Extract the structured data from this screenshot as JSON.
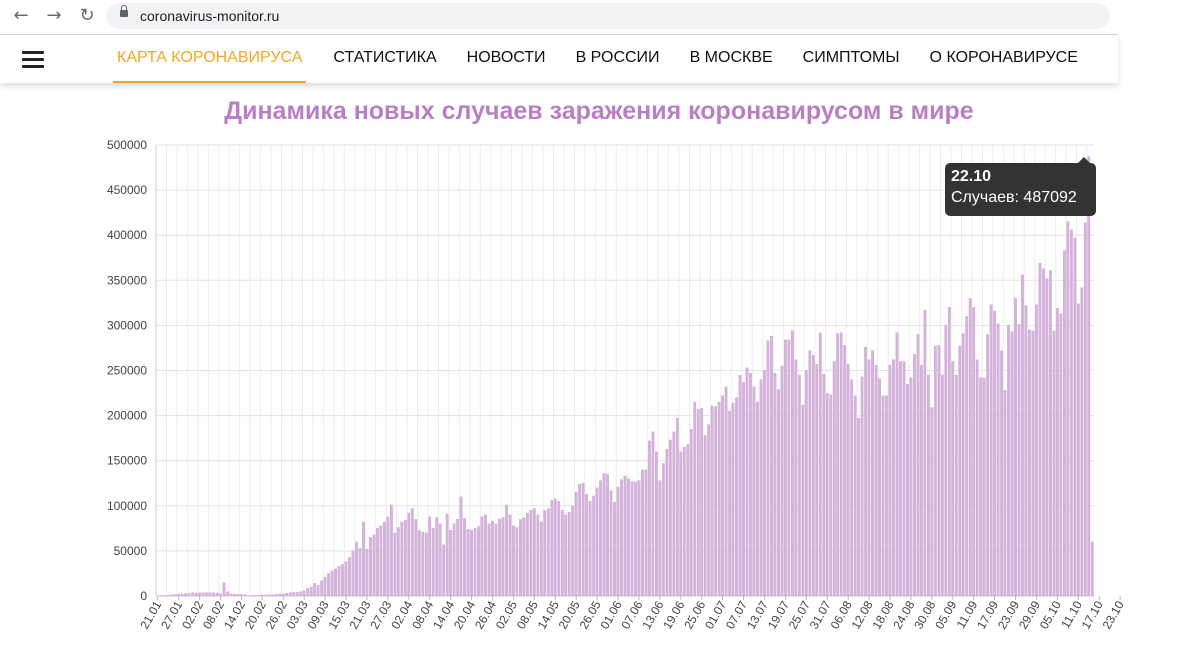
{
  "browser": {
    "back_icon": "arrow-left-icon",
    "forward_icon": "arrow-right-icon",
    "reload_icon": "reload-icon",
    "lock_icon": "lock-icon",
    "url": "coronavirus-monitor.ru"
  },
  "nav": {
    "menu_icon": "hamburger-menu-icon",
    "items": [
      {
        "label": "КАРТА КОРОНАВИРУСА",
        "active": true
      },
      {
        "label": "СТАТИСТИКА"
      },
      {
        "label": "НОВОСТИ"
      },
      {
        "label": "В РОССИИ"
      },
      {
        "label": "В МОСКВЕ"
      },
      {
        "label": "СИМПТОМЫ"
      },
      {
        "label": "О КОРОНАВИРУСЕ"
      }
    ],
    "accent_color": "#f5a623"
  },
  "chart_title": "Динамика новых случаев заражения коронавирусом в мире",
  "tooltip": {
    "date": "22.10",
    "label": "Случаев: 487092"
  },
  "chart_data": {
    "type": "bar",
    "title": "Динамика новых случаев заражения коронавирусом в мире",
    "bar_color": "#d6b3dc",
    "bar_edge_color": "#c79fce",
    "grid": true,
    "ylim": [
      0,
      500000
    ],
    "y_ticks": [
      "0",
      "50000",
      "100000",
      "150000",
      "200000",
      "250000",
      "300000",
      "350000",
      "400000",
      "450000",
      "500000"
    ],
    "x_tick_labels": [
      "21.01",
      "27.01",
      "02.02",
      "08.02",
      "14.02",
      "20.02",
      "26.02",
      "03.03",
      "09.03",
      "15.03",
      "21.03",
      "27.03",
      "02.04",
      "08.04",
      "14.04",
      "20.04",
      "26.04",
      "02.05",
      "08.05",
      "14.05",
      "20.05",
      "26.05",
      "01.06",
      "07.06",
      "13.06",
      "19.06",
      "25.06",
      "01.07",
      "07.07",
      "13.07",
      "19.07",
      "25.07",
      "31.07",
      "06.08",
      "12.08",
      "18.08",
      "24.08",
      "30.08",
      "05.09",
      "11.09",
      "17.09",
      "23.09",
      "29.09",
      "05.10",
      "11.10",
      "17.10",
      "23.10"
    ],
    "x_tick_every": 6,
    "start_date": "21.01",
    "values": [
      500,
      600,
      700,
      900,
      1200,
      1700,
      2100,
      2600,
      2800,
      3000,
      3600,
      3300,
      3500,
      3600,
      3700,
      3900,
      3600,
      3400,
      2500,
      15000,
      4800,
      2500,
      2000,
      1900,
      1800,
      1700,
      500,
      600,
      800,
      900,
      1100,
      1200,
      1300,
      1500,
      1800,
      2300,
      2500,
      3000,
      3500,
      4000,
      4200,
      4800,
      6000,
      8500,
      10000,
      14000,
      12000,
      17000,
      21000,
      25000,
      28000,
      30000,
      33000,
      35000,
      38000,
      43000,
      50000,
      60000,
      53000,
      82000,
      52000,
      65000,
      68000,
      75000,
      78000,
      82000,
      88000,
      101000,
      70000,
      76000,
      82000,
      84000,
      92000,
      97000,
      85000,
      73000,
      71000,
      70000,
      88000,
      75000,
      87000,
      80000,
      57000,
      91000,
      73000,
      80000,
      85000,
      110000,
      86000,
      74000,
      73000,
      75000,
      77000,
      88000,
      90000,
      80000,
      83000,
      80000,
      85000,
      87000,
      101000,
      90000,
      78000,
      76000,
      85000,
      87000,
      92000,
      95000,
      97000,
      90000,
      82000,
      95000,
      97000,
      106000,
      108000,
      105000,
      95000,
      90000,
      93000,
      100000,
      115000,
      124000,
      125000,
      113000,
      105000,
      111000,
      120000,
      128000,
      136000,
      135000,
      117000,
      104000,
      121000,
      129000,
      133000,
      130000,
      127000,
      126000,
      128000,
      140000,
      140000,
      172000,
      182000,
      160000,
      128000,
      147000,
      163000,
      173000,
      182000,
      197000,
      160000,
      165000,
      168000,
      185000,
      215000,
      207000,
      208000,
      178000,
      190000,
      211000,
      210000,
      215000,
      222000,
      232000,
      205000,
      214000,
      220000,
      245000,
      237000,
      253000,
      247000,
      232000,
      215000,
      240000,
      250000,
      283000,
      288000,
      247000,
      229000,
      255000,
      284000,
      284000,
      294000,
      262000,
      245000,
      212000,
      250000,
      272000,
      267000,
      257000,
      292000,
      246000,
      225000,
      223000,
      260000,
      291000,
      292000,
      278000,
      257000,
      240000,
      222000,
      197000,
      243000,
      276000,
      262000,
      272000,
      256000,
      241000,
      222000,
      222000,
      256000,
      262000,
      292000,
      260000,
      260000,
      235000,
      242000,
      268000,
      290000,
      256000,
      317000,
      245000,
      209000,
      277000,
      278000,
      245000,
      300000,
      320000,
      260000,
      245000,
      277000,
      291000,
      310000,
      330000,
      320000,
      262000,
      242000,
      242000,
      290000,
      323000,
      316000,
      302000,
      272000,
      228000,
      300000,
      293000,
      330000,
      301000,
      356000,
      322000,
      295000,
      294000,
      323000,
      369000,
      363000,
      352000,
      361000,
      294000,
      319000,
      313000,
      383000,
      415000,
      406000,
      397000,
      324000,
      342000,
      414000,
      487092,
      60000
    ],
    "tooltip_value": 487092,
    "tooltip_date": "22.10"
  }
}
